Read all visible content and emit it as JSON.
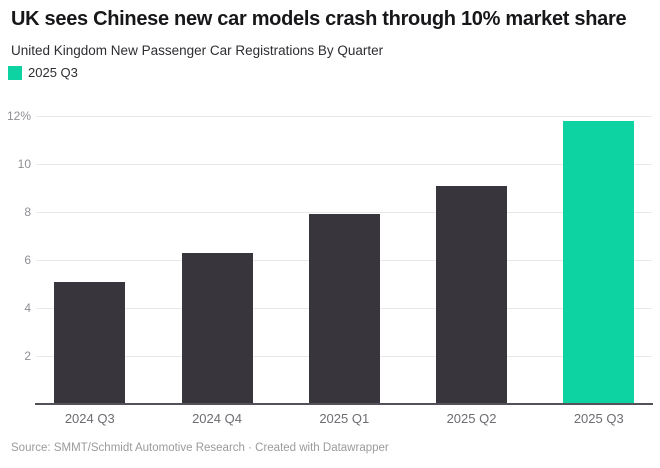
{
  "header": {
    "title": "UK sees Chinese new car models crash through 10% market share",
    "subtitle": "United Kingdom New Passenger Car Registrations By Quarter"
  },
  "legend": {
    "label": "2025 Q3",
    "swatch_color": "#0dd3a2"
  },
  "chart_data": {
    "type": "bar",
    "title": "UK sees Chinese new car models crash through 10% market share",
    "subtitle": "United Kingdom New Passenger Car Registrations By Quarter",
    "categories": [
      "2024 Q3",
      "2024 Q4",
      "2025 Q1",
      "2025 Q2",
      "2025 Q3"
    ],
    "values": [
      5.1,
      6.3,
      7.9,
      9.1,
      11.8
    ],
    "unit": "%",
    "ylim": [
      0,
      12.5
    ],
    "yticks": [
      2,
      4,
      6,
      8,
      10,
      12
    ],
    "ytick_labels": [
      "2",
      "4",
      "6",
      "8",
      "10",
      "12%"
    ],
    "grid": true,
    "legend_position": "top-left",
    "highlight_category": "2025 Q3",
    "bar_color_default": "#38353c",
    "bar_color_highlight": "#0dd3a2"
  },
  "footer": {
    "text": "Source: SMMT/Schmidt Automotive Research · Created with Datawrapper"
  }
}
